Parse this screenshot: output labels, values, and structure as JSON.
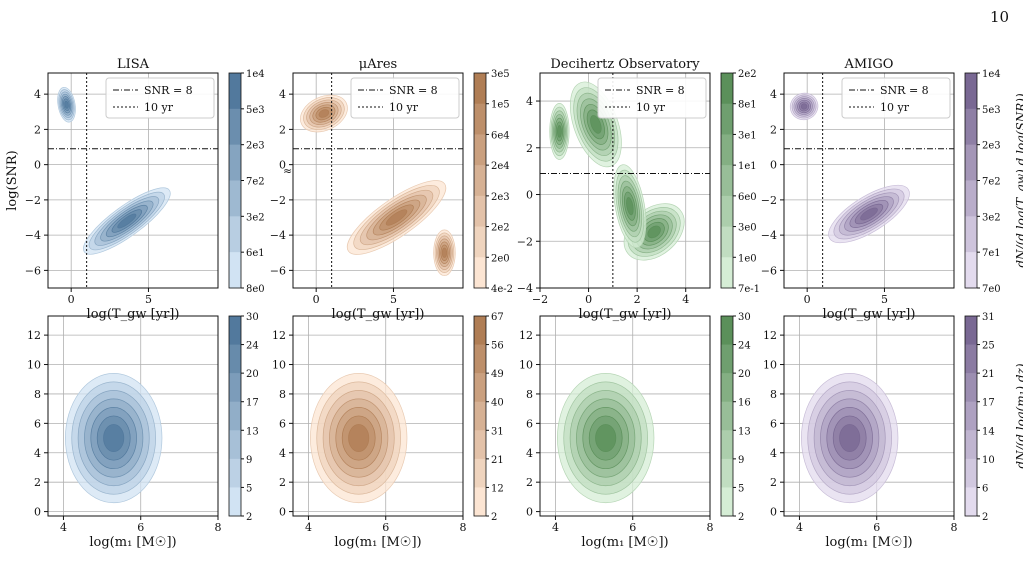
{
  "page": {
    "number": "10"
  },
  "chart_data": [
    {
      "type": "contour",
      "title": "LISA",
      "xlabel": "log(T_gw [yr])",
      "ylabel": "log(SNR)",
      "xlim": [
        -1.5,
        9.5
      ],
      "ylim": [
        -7,
        5.2
      ],
      "xticks": [
        0,
        5
      ],
      "xtick_labels": [
        "0",
        "5"
      ],
      "yticks": [
        -6,
        -4,
        -2,
        0,
        2,
        4
      ],
      "ytick_labels": [
        "−6",
        "−4",
        "−2",
        "0",
        "2",
        "4"
      ],
      "grid": true,
      "color": "#5b9bd5",
      "colorbar": {
        "tick_labels": [
          "1e4",
          "5e3",
          "2e3",
          "7e2",
          "3e2",
          "6e1",
          "8e0"
        ],
        "label": ""
      },
      "legend": {
        "entries": [
          "SNR = 8",
          "10 yr"
        ],
        "placement": "upper-right"
      },
      "reference_lines": {
        "snr_threshold_logsnr": 0.9,
        "ten_year_logT": 1.0
      },
      "annotations": [
        "≈"
      ],
      "distribution": {
        "trend": "anti-correlated",
        "main_center": [
          4.0,
          -3.8
        ],
        "secondary_center": [
          -0.3,
          3.2
        ]
      }
    },
    {
      "type": "contour",
      "title": "μAres",
      "xlabel": "log(T_gw [yr])",
      "ylabel": "",
      "xlim": [
        -1.5,
        9.5
      ],
      "ylim": [
        -7,
        5.2
      ],
      "xticks": [
        0,
        5
      ],
      "xtick_labels": [
        "0",
        "5"
      ],
      "yticks": [
        -6,
        -4,
        -2,
        0,
        2,
        4
      ],
      "ytick_labels": [
        "−6",
        "−4",
        "−2",
        "0",
        "2",
        "4"
      ],
      "grid": true,
      "color": "#f4a261",
      "colorbar": {
        "tick_labels": [
          "3e5",
          "1e5",
          "6e4",
          "2e4",
          "2e3",
          "2e2",
          "2e0",
          "4e-2"
        ],
        "label": ""
      },
      "legend": {
        "entries": [
          "SNR = 8",
          "10 yr"
        ],
        "placement": "upper-right"
      },
      "reference_lines": {
        "snr_threshold_logsnr": 0.9,
        "ten_year_logT": 1.0
      },
      "distribution": {
        "trend": "anti-correlated",
        "main_center": [
          6.0,
          -3.8
        ],
        "secondary_center": [
          0.3,
          3.0
        ]
      }
    },
    {
      "type": "contour",
      "title": "Decihertz Observatory",
      "xlabel": "log(T_gw [yr])",
      "ylabel": "",
      "xlim": [
        -2,
        5
      ],
      "ylim": [
        -4,
        5.2
      ],
      "xticks": [
        -2,
        0,
        2,
        4
      ],
      "xtick_labels": [
        "−2",
        "0",
        "2",
        "4"
      ],
      "yticks": [
        -4,
        -2,
        0,
        2,
        4
      ],
      "ytick_labels": [
        "−4",
        "−2",
        "0",
        "2",
        "4"
      ],
      "grid": true,
      "color": "#6abf69",
      "colorbar": {
        "tick_labels": [
          "2e2",
          "8e1",
          "3e1",
          "1e1",
          "6e0",
          "3e0",
          "1e0",
          "7e-1"
        ],
        "label": ""
      },
      "legend": {
        "entries": [
          "SNR = 8",
          "10 yr"
        ],
        "placement": "upper-right"
      },
      "reference_lines": {
        "snr_threshold_logsnr": 0.9,
        "ten_year_logT": 1.0
      },
      "distribution": {
        "trend": "anti-correlated",
        "main_center": [
          0.3,
          3.2
        ],
        "secondary_center": [
          2.8,
          -1.8
        ]
      }
    },
    {
      "type": "contour",
      "title": "AMIGO",
      "xlabel": "log(T_gw [yr])",
      "ylabel": "",
      "xlim": [
        -1.5,
        9.5
      ],
      "ylim": [
        -7,
        5.2
      ],
      "xticks": [
        0,
        5
      ],
      "xtick_labels": [
        "0",
        "5"
      ],
      "yticks": [
        -6,
        -4,
        -2,
        0,
        2,
        4
      ],
      "ytick_labels": [
        "−6",
        "−4",
        "−2",
        "0",
        "2",
        "4"
      ],
      "grid": true,
      "color": "#9b7fc4",
      "colorbar": {
        "tick_labels": [
          "1e4",
          "5e3",
          "2e3",
          "7e2",
          "3e2",
          "7e1",
          "7e0"
        ],
        "label": "dN/(d log(T_gw) d log(SNR))"
      },
      "legend": {
        "entries": [
          "SNR = 8",
          "10 yr"
        ],
        "placement": "upper-right"
      },
      "reference_lines": {
        "snr_threshold_logsnr": 0.9,
        "ten_year_logT": 1.0
      },
      "distribution": {
        "trend": "anti-correlated",
        "main_center": [
          4.0,
          -3.0
        ],
        "secondary_center": [
          -0.2,
          3.2
        ]
      }
    },
    {
      "type": "contour",
      "title": "",
      "xlabel": "log(m₁ [M☉])",
      "ylabel": "",
      "xlim": [
        3.6,
        8.0
      ],
      "ylim": [
        -0.3,
        13.3
      ],
      "xticks": [
        4,
        6,
        8
      ],
      "xtick_labels": [
        "4",
        "6",
        "8"
      ],
      "yticks": [
        0,
        2,
        4,
        6,
        8,
        10,
        12
      ],
      "ytick_labels": [
        "0",
        "2",
        "4",
        "6",
        "8",
        "10",
        "12"
      ],
      "grid": true,
      "color": "#5b9bd5",
      "colorbar": {
        "tick_labels": [
          "30",
          "24",
          "20",
          "17",
          "13",
          "9",
          "5",
          "2"
        ],
        "label": ""
      },
      "distribution": {
        "center": [
          5.4,
          4.3
        ]
      }
    },
    {
      "type": "contour",
      "title": "",
      "xlabel": "log(m₁ [M☉])",
      "ylabel": "",
      "xlim": [
        3.6,
        8.0
      ],
      "ylim": [
        -0.3,
        13.3
      ],
      "xticks": [
        4,
        6,
        8
      ],
      "xtick_labels": [
        "4",
        "6",
        "8"
      ],
      "yticks": [
        0,
        2,
        4,
        6,
        8,
        10,
        12
      ],
      "ytick_labels": [
        "0",
        "2",
        "4",
        "6",
        "8",
        "10",
        "12"
      ],
      "grid": true,
      "color": "#f4a261",
      "colorbar": {
        "tick_labels": [
          "67",
          "56",
          "49",
          "40",
          "31",
          "21",
          "12",
          "2"
        ],
        "label": ""
      },
      "distribution": {
        "center": [
          5.4,
          3.0
        ]
      }
    },
    {
      "type": "contour",
      "title": "",
      "xlabel": "log(m₁ [M☉])",
      "ylabel": "",
      "xlim": [
        3.6,
        8.0
      ],
      "ylim": [
        -0.3,
        13.3
      ],
      "xticks": [
        4,
        6,
        8
      ],
      "xtick_labels": [
        "4",
        "6",
        "8"
      ],
      "yticks": [
        0,
        2,
        4,
        6,
        8,
        10,
        12
      ],
      "ytick_labels": [
        "0",
        "2",
        "4",
        "6",
        "8",
        "10",
        "12"
      ],
      "grid": true,
      "color": "#6abf69",
      "colorbar": {
        "tick_labels": [
          "30",
          "24",
          "20",
          "16",
          "13",
          "9",
          "5",
          "2"
        ],
        "label": ""
      },
      "distribution": {
        "center": [
          5.4,
          4.3
        ]
      }
    },
    {
      "type": "contour",
      "title": "",
      "xlabel": "log(m₁ [M☉])",
      "ylabel": "",
      "xlim": [
        3.6,
        8.0
      ],
      "ylim": [
        -0.3,
        13.3
      ],
      "xticks": [
        4,
        6,
        8
      ],
      "xtick_labels": [
        "4",
        "6",
        "8"
      ],
      "yticks": [
        0,
        2,
        4,
        6,
        8,
        10,
        12
      ],
      "ytick_labels": [
        "0",
        "2",
        "4",
        "6",
        "8",
        "10",
        "12"
      ],
      "grid": true,
      "color": "#9b7fc4",
      "colorbar": {
        "tick_labels": [
          "31",
          "25",
          "21",
          "17",
          "14",
          "10",
          "6",
          "2"
        ],
        "label": "dN/(d log(m₁) dz)"
      },
      "distribution": {
        "center": [
          5.4,
          4.3
        ]
      }
    }
  ]
}
